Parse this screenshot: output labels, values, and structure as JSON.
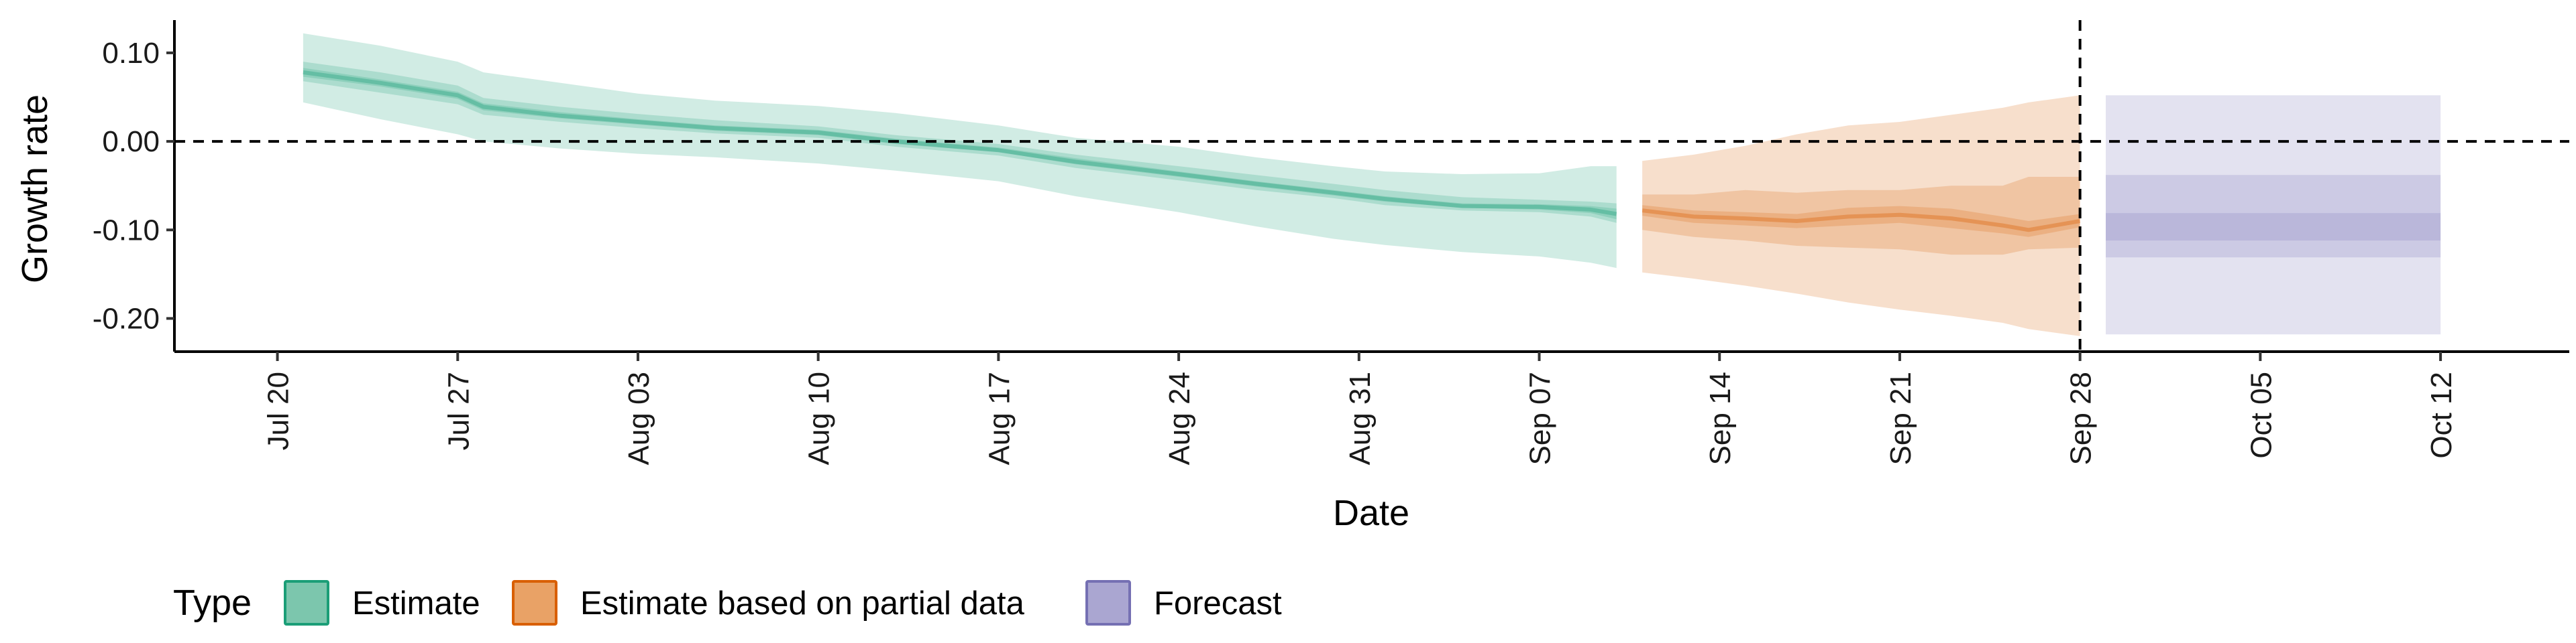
{
  "chart_data": {
    "type": "area",
    "xlabel": "Date",
    "ylabel": "Growth rate",
    "ylim": [
      -0.2375,
      0.137
    ],
    "xlim_dates": [
      "2020-07-16",
      "2020-10-17"
    ],
    "y_ticks": [
      {
        "value": 0.1,
        "label": "0.10"
      },
      {
        "value": 0.0,
        "label": "0.00"
      },
      {
        "value": -0.1,
        "label": "-0.10"
      },
      {
        "value": -0.2,
        "label": "-0.20"
      }
    ],
    "x_ticks": [
      {
        "date": "2020-07-20",
        "label": "Jul 20"
      },
      {
        "date": "2020-07-27",
        "label": "Jul 27"
      },
      {
        "date": "2020-08-03",
        "label": "Aug 03"
      },
      {
        "date": "2020-08-10",
        "label": "Aug 10"
      },
      {
        "date": "2020-08-17",
        "label": "Aug 17"
      },
      {
        "date": "2020-08-24",
        "label": "Aug 24"
      },
      {
        "date": "2020-08-31",
        "label": "Aug 31"
      },
      {
        "date": "2020-09-07",
        "label": "Sep 07"
      },
      {
        "date": "2020-09-14",
        "label": "Sep 14"
      },
      {
        "date": "2020-09-21",
        "label": "Sep 21"
      },
      {
        "date": "2020-09-28",
        "label": "Sep 28"
      },
      {
        "date": "2020-10-05",
        "label": "Oct 05"
      },
      {
        "date": "2020-10-12",
        "label": "Oct 12"
      }
    ],
    "reference_lines": {
      "horizontal_y": 0,
      "vertical_date": "2020-09-28",
      "style": "dashed"
    },
    "legend": {
      "title": "Type",
      "position": "bottom-left",
      "items": [
        {
          "label": "Estimate",
          "fill": "#7cc6ad",
          "stroke": "#1b9e77"
        },
        {
          "label": "Estimate based on partial data",
          "fill": "#e9a266",
          "stroke": "#d95f02"
        },
        {
          "label": "Forecast",
          "fill": "#aaa6d1",
          "stroke": "#7570b3"
        }
      ]
    },
    "series": [
      {
        "name": "Estimate",
        "color": "#1b9e77",
        "x": [
          "2020-07-21",
          "2020-07-24",
          "2020-07-27",
          "2020-07-28",
          "2020-07-31",
          "2020-08-03",
          "2020-08-06",
          "2020-08-10",
          "2020-08-13",
          "2020-08-17",
          "2020-08-20",
          "2020-08-24",
          "2020-08-27",
          "2020-08-30",
          "2020-09-01",
          "2020-09-04",
          "2020-09-07",
          "2020-09-09",
          "2020-09-10"
        ],
        "lower90": [
          0.044,
          0.025,
          0.008,
          0.0,
          -0.008,
          -0.014,
          -0.018,
          -0.025,
          -0.033,
          -0.045,
          -0.062,
          -0.08,
          -0.096,
          -0.11,
          -0.117,
          -0.125,
          -0.13,
          -0.137,
          -0.143
        ],
        "lower50": [
          0.068,
          0.055,
          0.042,
          0.03,
          0.022,
          0.015,
          0.009,
          0.004,
          -0.006,
          -0.016,
          -0.03,
          -0.044,
          -0.055,
          -0.064,
          -0.072,
          -0.078,
          -0.08,
          -0.085,
          -0.092
        ],
        "lower20": [
          0.073,
          0.062,
          0.048,
          0.035,
          0.026,
          0.019,
          0.012,
          0.007,
          -0.003,
          -0.012,
          -0.026,
          -0.04,
          -0.051,
          -0.061,
          -0.068,
          -0.075,
          -0.077,
          -0.081,
          -0.088
        ],
        "median": [
          0.078,
          0.066,
          0.052,
          0.039,
          0.029,
          0.022,
          0.015,
          0.01,
          0.0,
          -0.01,
          -0.023,
          -0.037,
          -0.048,
          -0.058,
          -0.065,
          -0.073,
          -0.074,
          -0.077,
          -0.082
        ],
        "upper20": [
          0.083,
          0.07,
          0.056,
          0.043,
          0.033,
          0.025,
          0.018,
          0.013,
          0.003,
          -0.007,
          -0.019,
          -0.034,
          -0.045,
          -0.055,
          -0.062,
          -0.07,
          -0.071,
          -0.073,
          -0.076
        ],
        "upper50": [
          0.09,
          0.078,
          0.063,
          0.049,
          0.039,
          0.031,
          0.024,
          0.017,
          0.007,
          -0.003,
          -0.015,
          -0.028,
          -0.038,
          -0.048,
          -0.055,
          -0.063,
          -0.066,
          -0.068,
          -0.07
        ],
        "upper90": [
          0.122,
          0.108,
          0.09,
          0.078,
          0.066,
          0.054,
          0.046,
          0.04,
          0.032,
          0.018,
          0.004,
          -0.006,
          -0.018,
          -0.028,
          -0.034,
          -0.037,
          -0.036,
          -0.028,
          -0.028
        ]
      },
      {
        "name": "Estimate based on partial data",
        "color": "#d95f02",
        "x": [
          "2020-09-11",
          "2020-09-13",
          "2020-09-15",
          "2020-09-17",
          "2020-09-19",
          "2020-09-21",
          "2020-09-23",
          "2020-09-25",
          "2020-09-26",
          "2020-09-28"
        ],
        "lower90": [
          -0.148,
          -0.155,
          -0.163,
          -0.172,
          -0.182,
          -0.19,
          -0.197,
          -0.205,
          -0.212,
          -0.22
        ],
        "lower50": [
          -0.1,
          -0.108,
          -0.112,
          -0.118,
          -0.12,
          -0.122,
          -0.128,
          -0.128,
          -0.122,
          -0.12
        ],
        "lower20": [
          -0.084,
          -0.092,
          -0.095,
          -0.098,
          -0.095,
          -0.092,
          -0.098,
          -0.104,
          -0.108,
          -0.097
        ],
        "median": [
          -0.078,
          -0.085,
          -0.087,
          -0.09,
          -0.085,
          -0.083,
          -0.087,
          -0.095,
          -0.1,
          -0.09
        ],
        "upper20": [
          -0.072,
          -0.078,
          -0.08,
          -0.082,
          -0.075,
          -0.073,
          -0.076,
          -0.085,
          -0.09,
          -0.082
        ],
        "upper50": [
          -0.06,
          -0.06,
          -0.055,
          -0.058,
          -0.055,
          -0.055,
          -0.05,
          -0.05,
          -0.04,
          -0.04
        ],
        "upper90": [
          -0.022,
          -0.015,
          -0.005,
          0.008,
          0.018,
          0.022,
          0.03,
          0.038,
          0.044,
          0.052
        ]
      },
      {
        "name": "Forecast",
        "color": "#7570b3",
        "x": [
          "2020-09-29",
          "2020-10-12"
        ],
        "lower90": [
          -0.218,
          -0.218
        ],
        "lower50": [
          -0.131,
          -0.131
        ],
        "median": [
          -0.097,
          -0.097
        ],
        "upper50": [
          -0.038,
          -0.038
        ],
        "upper90": [
          0.052,
          0.052
        ],
        "band20": [
          -0.112,
          -0.081
        ]
      }
    ]
  }
}
